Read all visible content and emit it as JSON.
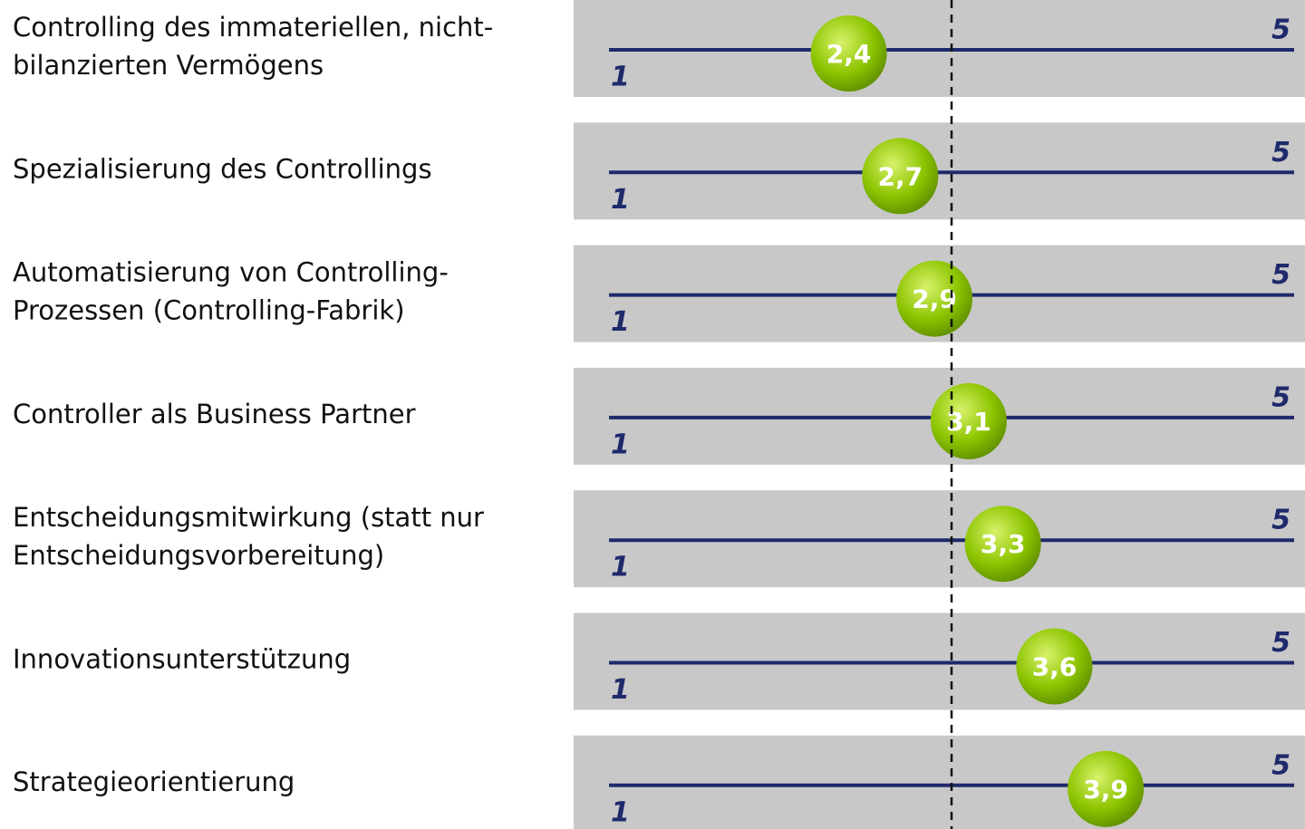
{
  "chart_data": {
    "type": "dot",
    "categories": [
      [
        "Controlling des immateriellen, nicht-",
        "bilanzierten Vermögens"
      ],
      [
        "Spezialisierung des Controllings"
      ],
      [
        "Automatisierung von Controlling-",
        "Prozessen (Controlling-Fabrik)"
      ],
      [
        "Controller als Business Partner"
      ],
      [
        "Entscheidungsmitwirkung (statt nur",
        "Entscheidungsvorbereitung)"
      ],
      [
        "Innovationsunterstützung"
      ],
      [
        "Strategieorientierung"
      ]
    ],
    "values": [
      2.4,
      2.7,
      2.9,
      3.1,
      3.3,
      3.6,
      3.9
    ],
    "value_labels": [
      "2,4",
      "2,7",
      "2,9",
      "3,1",
      "3,3",
      "3,6",
      "3,9"
    ],
    "xlim": [
      1,
      5
    ],
    "xticks": [
      1,
      5
    ],
    "reference_line": 3,
    "color": "#8cc400",
    "line_color": "#1f2a6b",
    "band_color": "#c8c8c8"
  }
}
